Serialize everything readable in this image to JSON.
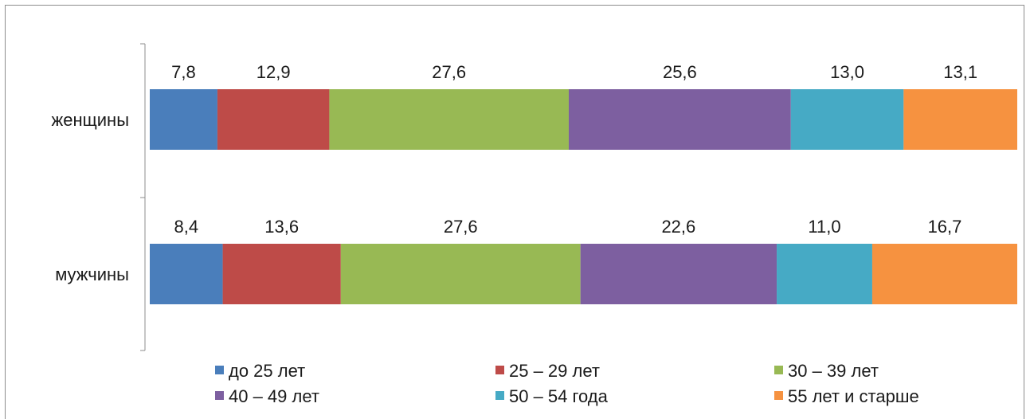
{
  "chart_data": {
    "type": "bar",
    "orientation": "horizontal",
    "stacked": "percent",
    "categories": [
      "женщины",
      "мужчины"
    ],
    "series": [
      {
        "name": "до 25 лет",
        "values": [
          7.8,
          8.4
        ],
        "labels": [
          "7,8",
          "8,4"
        ],
        "color": "#4a7ebb"
      },
      {
        "name": "25 – 29 лет",
        "values": [
          12.9,
          13.6
        ],
        "labels": [
          "12,9",
          "13,6"
        ],
        "color": "#be4b48"
      },
      {
        "name": "30 – 39 лет",
        "values": [
          27.6,
          27.6
        ],
        "labels": [
          "27,6",
          "27,6"
        ],
        "color": "#98b954"
      },
      {
        "name": "40 – 49 лет",
        "values": [
          25.6,
          22.6
        ],
        "labels": [
          "25,6",
          "22,6"
        ],
        "color": "#7d5fa0"
      },
      {
        "name": "50 – 54 года",
        "values": [
          13.0,
          11.0
        ],
        "labels": [
          "13,0",
          "11,0"
        ],
        "color": "#46aac5"
      },
      {
        "name": "55 лет и старше",
        "values": [
          13.1,
          16.7
        ],
        "labels": [
          "13,1",
          "16,7"
        ],
        "color": "#f69240"
      }
    ],
    "xlim": [
      0,
      100
    ],
    "grid": false,
    "legend_position": "bottom"
  }
}
